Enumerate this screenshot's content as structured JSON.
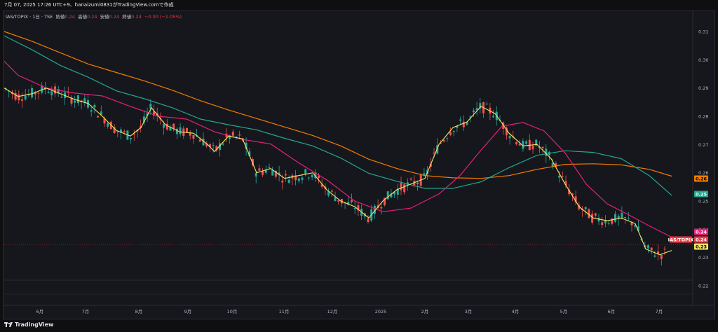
{
  "header": {
    "text": "7月 07, 2025 17:26 UTC+9、hanaizumi0831がTradingView.comで作成"
  },
  "legend": {
    "symbol": "IAS/TOPIX · 1日 · TSE",
    "open_label": "始値",
    "open": "0.24",
    "high_label": "高値",
    "high": "0.24",
    "low_label": "安値",
    "low": "0.24",
    "close_label": "終値",
    "close": "0.24",
    "change": "−0.00 (−1.05%)"
  },
  "footer": {
    "brand": "TradingView",
    "logo_icon": "tradingview-logo-icon"
  },
  "colors": {
    "up": "#26a69a",
    "down": "#ef5350",
    "ma_yellow": "#f5e663",
    "ma_magenta": "#e91e7d",
    "ma_teal": "#22a88f",
    "ma_orange": "#f57c00",
    "price_line": "#ef5350"
  },
  "chart_data": {
    "type": "line",
    "title": "IAS/TOPIX · 1日 · TSE",
    "x_ticks": [
      "6月",
      "7月",
      "8月",
      "9月",
      "10月",
      "11月",
      "12月",
      "2025",
      "2月",
      "3月",
      "4月",
      "5月",
      "6月",
      "7月"
    ],
    "y_ticks": [
      "0.31",
      "0.30",
      "0.29",
      "0.28",
      "0.27",
      "0.26",
      "0.25",
      "0.24",
      "0.23",
      "0.22"
    ],
    "ylim": [
      0.22,
      0.31
    ],
    "price_tags": [
      {
        "label": "0.26",
        "value": 0.2577,
        "color": "#f57c00",
        "text_color": "#000000"
      },
      {
        "label": "0.25",
        "value": 0.252,
        "color": "#22a88f",
        "text_color": "#ffffff"
      },
      {
        "label": "0.24",
        "value": 0.2372,
        "color": "#e91e7d",
        "text_color": "#ffffff"
      },
      {
        "label": "IAS/TOPIX",
        "value": 0.2346,
        "color": "#f23645",
        "text_color": "#ffffff"
      },
      {
        "label": "0.24",
        "value": 0.2346,
        "color": "#f23645",
        "text_color": "#ffffff"
      },
      {
        "label": "0.23",
        "value": 0.2322,
        "color": "#f5e663",
        "text_color": "#000000"
      }
    ],
    "series": [
      {
        "name": "",
        "color": "#f57c00",
        "values": [
          [
            0,
            0.31
          ],
          [
            40,
            0.3065
          ],
          [
            80,
            0.3025
          ],
          [
            120,
            0.2985
          ],
          [
            160,
            0.2955
          ],
          [
            200,
            0.2925
          ],
          [
            240,
            0.2892
          ],
          [
            280,
            0.2855
          ],
          [
            320,
            0.2822
          ],
          [
            360,
            0.2792
          ],
          [
            400,
            0.2762
          ],
          [
            440,
            0.2732
          ],
          [
            480,
            0.2695
          ],
          [
            520,
            0.2648
          ],
          [
            560,
            0.2615
          ],
          [
            600,
            0.259
          ],
          [
            640,
            0.2582
          ],
          [
            680,
            0.258
          ],
          [
            720,
            0.259
          ],
          [
            760,
            0.2612
          ],
          [
            800,
            0.263
          ],
          [
            840,
            0.2632
          ],
          [
            880,
            0.2628
          ],
          [
            920,
            0.2612
          ],
          [
            952,
            0.2588
          ]
        ]
      },
      {
        "name": "",
        "color": "#22a88f",
        "values": [
          [
            0,
            0.3085
          ],
          [
            40,
            0.3035
          ],
          [
            80,
            0.298
          ],
          [
            120,
            0.2938
          ],
          [
            160,
            0.289
          ],
          [
            200,
            0.2862
          ],
          [
            240,
            0.283
          ],
          [
            280,
            0.279
          ],
          [
            320,
            0.277
          ],
          [
            360,
            0.2752
          ],
          [
            400,
            0.2722
          ],
          [
            440,
            0.2695
          ],
          [
            480,
            0.2652
          ],
          [
            520,
            0.2598
          ],
          [
            560,
            0.257
          ],
          [
            600,
            0.2545
          ],
          [
            640,
            0.2545
          ],
          [
            680,
            0.2568
          ],
          [
            720,
            0.2618
          ],
          [
            760,
            0.2662
          ],
          [
            800,
            0.2678
          ],
          [
            840,
            0.2672
          ],
          [
            880,
            0.265
          ],
          [
            920,
            0.259
          ],
          [
            952,
            0.252
          ]
        ]
      },
      {
        "name": "",
        "color": "#e91e7d",
        "values": [
          [
            0,
            0.2995
          ],
          [
            20,
            0.2945
          ],
          [
            60,
            0.29
          ],
          [
            100,
            0.2882
          ],
          [
            140,
            0.2872
          ],
          [
            180,
            0.2835
          ],
          [
            220,
            0.28
          ],
          [
            260,
            0.279
          ],
          [
            300,
            0.2745
          ],
          [
            340,
            0.2718
          ],
          [
            380,
            0.2702
          ],
          [
            420,
            0.2635
          ],
          [
            460,
            0.2575
          ],
          [
            500,
            0.25
          ],
          [
            540,
            0.2462
          ],
          [
            580,
            0.2475
          ],
          [
            620,
            0.2525
          ],
          [
            650,
            0.259
          ],
          [
            680,
            0.268
          ],
          [
            710,
            0.2765
          ],
          [
            740,
            0.2778
          ],
          [
            770,
            0.2748
          ],
          [
            800,
            0.267
          ],
          [
            830,
            0.256
          ],
          [
            860,
            0.249
          ],
          [
            890,
            0.2452
          ],
          [
            920,
            0.2412
          ],
          [
            952,
            0.2372
          ]
        ]
      },
      {
        "name": "",
        "color": "#f5e663",
        "values": [
          [
            0,
            0.29
          ],
          [
            20,
            0.287
          ],
          [
            40,
            0.288
          ],
          [
            60,
            0.29
          ],
          [
            80,
            0.288
          ],
          [
            100,
            0.286
          ],
          [
            120,
            0.2845
          ],
          [
            140,
            0.28
          ],
          [
            160,
            0.275
          ],
          [
            180,
            0.273
          ],
          [
            195,
            0.276
          ],
          [
            210,
            0.283
          ],
          [
            230,
            0.277
          ],
          [
            250,
            0.2745
          ],
          [
            270,
            0.274
          ],
          [
            290,
            0.27
          ],
          [
            300,
            0.2675
          ],
          [
            320,
            0.273
          ],
          [
            340,
            0.272
          ],
          [
            360,
            0.26
          ],
          [
            380,
            0.2615
          ],
          [
            400,
            0.258
          ],
          [
            420,
            0.259
          ],
          [
            440,
            0.26
          ],
          [
            460,
            0.254
          ],
          [
            480,
            0.25
          ],
          [
            500,
            0.248
          ],
          [
            520,
            0.244
          ],
          [
            540,
            0.25
          ],
          [
            560,
            0.254
          ],
          [
            580,
            0.256
          ],
          [
            600,
            0.258
          ],
          [
            620,
            0.27
          ],
          [
            640,
            0.276
          ],
          [
            660,
            0.278
          ],
          [
            680,
            0.2835
          ],
          [
            700,
            0.281
          ],
          [
            720,
            0.274
          ],
          [
            740,
            0.2695
          ],
          [
            760,
            0.27
          ],
          [
            780,
            0.265
          ],
          [
            800,
            0.256
          ],
          [
            820,
            0.248
          ],
          [
            840,
            0.244
          ],
          [
            860,
            0.243
          ],
          [
            880,
            0.244
          ],
          [
            900,
            0.242
          ],
          [
            915,
            0.233
          ],
          [
            935,
            0.231
          ],
          [
            952,
            0.2325
          ]
        ]
      }
    ]
  }
}
